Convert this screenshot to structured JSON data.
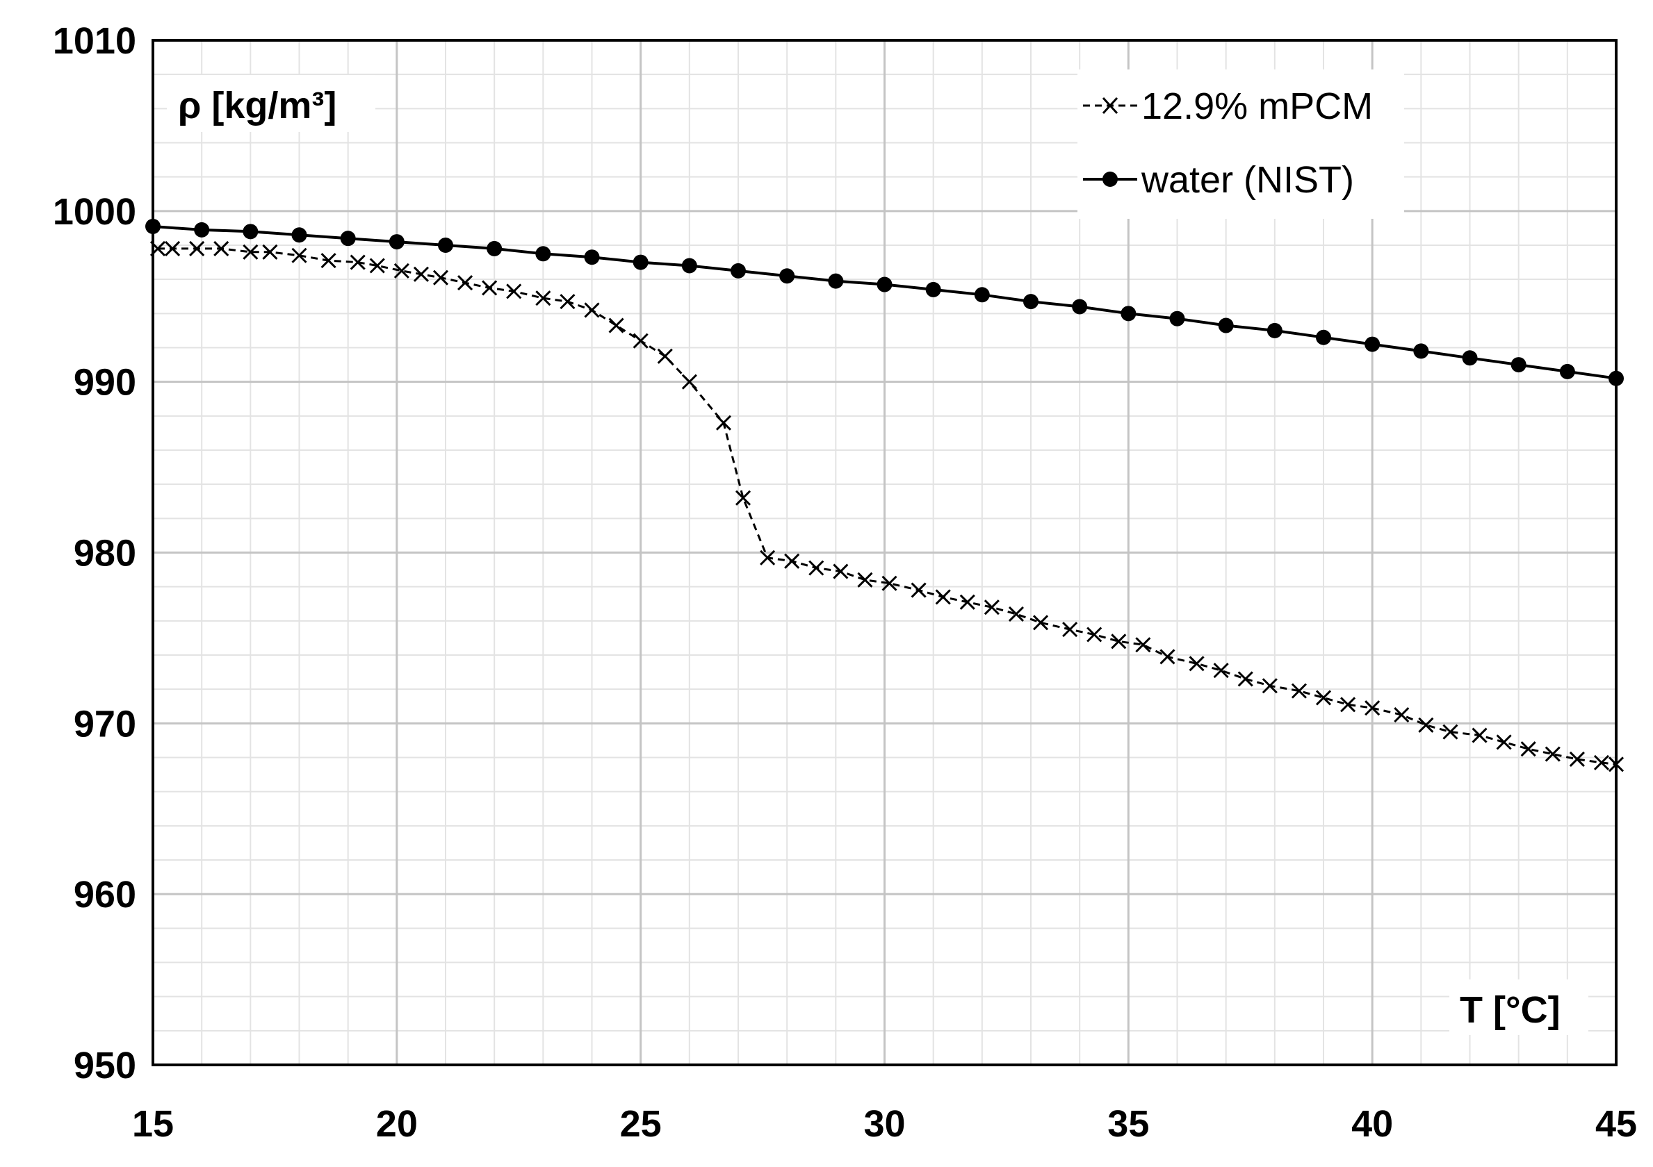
{
  "chart_data": {
    "type": "line",
    "xlabel": "T [°C]",
    "ylabel": "ρ [kg/m³]",
    "xlim": [
      15,
      45
    ],
    "ylim": [
      950,
      1010
    ],
    "x_ticks": [
      15,
      20,
      25,
      30,
      35,
      40,
      45
    ],
    "y_ticks": [
      950,
      960,
      970,
      980,
      990,
      1000,
      1010
    ],
    "x_tick_labels": [
      "15",
      "20",
      "25",
      "30",
      "35",
      "40",
      "45"
    ],
    "y_tick_labels": [
      "950",
      "960",
      "970",
      "980",
      "990",
      "1000",
      "1010"
    ],
    "minor_grid": {
      "x_step": 1,
      "y_step": 2
    },
    "legend_position": "top-right",
    "series": [
      {
        "name": "12.9% mPCM",
        "style": "dashed",
        "marker": "x",
        "color": "#000000",
        "x": [
          15.1,
          15.4,
          15.9,
          16.4,
          17.0,
          17.4,
          18.0,
          18.6,
          19.2,
          19.6,
          20.1,
          20.5,
          20.9,
          21.4,
          21.9,
          22.4,
          23.0,
          23.5,
          24.0,
          24.5,
          25.0,
          25.5,
          26.0,
          26.7,
          27.1,
          27.6,
          28.1,
          28.6,
          29.1,
          29.6,
          30.1,
          30.7,
          31.2,
          31.7,
          32.2,
          32.7,
          33.2,
          33.8,
          34.3,
          34.8,
          35.3,
          35.8,
          36.4,
          36.9,
          37.4,
          37.9,
          38.5,
          39.0,
          39.5,
          40.0,
          40.6,
          41.1,
          41.6,
          42.2,
          42.7,
          43.2,
          43.7,
          44.2,
          44.7,
          45.0
        ],
        "values": [
          997.8,
          997.8,
          997.8,
          997.8,
          997.6,
          997.6,
          997.4,
          997.1,
          997.0,
          996.8,
          996.5,
          996.3,
          996.1,
          995.8,
          995.5,
          995.3,
          994.9,
          994.7,
          994.2,
          993.3,
          992.4,
          991.5,
          990.0,
          987.6,
          983.2,
          979.7,
          979.5,
          979.1,
          978.9,
          978.4,
          978.2,
          977.8,
          977.4,
          977.1,
          976.8,
          976.4,
          975.9,
          975.5,
          975.2,
          974.8,
          974.6,
          973.9,
          973.5,
          973.1,
          972.6,
          972.2,
          971.9,
          971.5,
          971.1,
          970.9,
          970.5,
          969.9,
          969.5,
          969.3,
          968.9,
          968.5,
          968.2,
          967.9,
          967.7,
          967.6
        ]
      },
      {
        "name": "water (NIST)",
        "style": "solid",
        "marker": "circle",
        "color": "#000000",
        "x": [
          15,
          16,
          17,
          18,
          19,
          20,
          21,
          22,
          23,
          24,
          25,
          26,
          27,
          28,
          29,
          30,
          31,
          32,
          33,
          34,
          35,
          36,
          37,
          38,
          39,
          40,
          41,
          42,
          43,
          44,
          45
        ],
        "values": [
          999.1,
          998.9,
          998.8,
          998.6,
          998.4,
          998.2,
          998.0,
          997.8,
          997.5,
          997.3,
          997.0,
          996.8,
          996.5,
          996.2,
          995.9,
          995.7,
          995.4,
          995.1,
          994.7,
          994.4,
          994.0,
          993.7,
          993.3,
          993.0,
          992.6,
          992.2,
          991.8,
          991.4,
          991.0,
          990.6,
          990.2
        ]
      }
    ]
  }
}
